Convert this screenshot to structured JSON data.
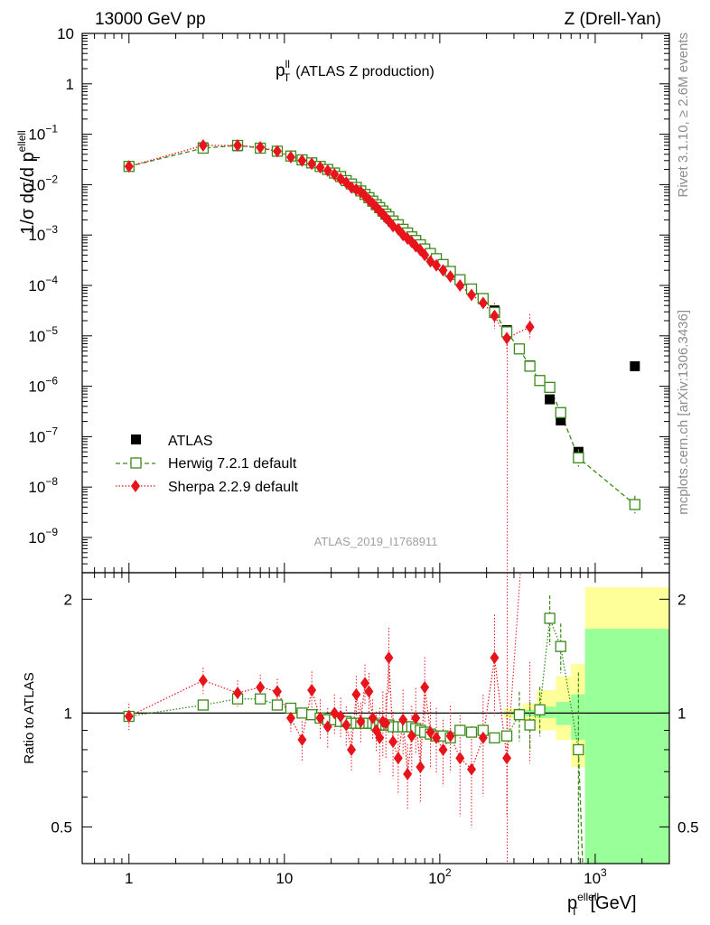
{
  "header": {
    "left": "13000 GeV pp",
    "right": "Z (Drell-Yan)"
  },
  "side_text": {
    "rivet": "Rivet 3.1.10, ≥ 2.6M events",
    "mcplots": "mcplots.cern.ch [arXiv:1306.3436]"
  },
  "chart_data": [
    {
      "type": "scatter",
      "panel": "main",
      "title": "(ATLAS Z production)",
      "title_main": "p",
      "title_sup": "ll",
      "title_sub": "T",
      "analysis_tag": "ATLAS_2019_I1768911",
      "ylabel": "1/σ dσ/d p",
      "ylabel_sup": "ellell",
      "ylabel_sub": "T",
      "x_scale": "log",
      "y_scale": "log",
      "xlim": [
        0.5,
        3000
      ],
      "ylim": [
        2e-10,
        10
      ],
      "y_ticks": [
        {
          "v": 1e-09,
          "b": "10",
          "e": "−9"
        },
        {
          "v": 1e-08,
          "b": "10",
          "e": "−8"
        },
        {
          "v": 1e-07,
          "b": "10",
          "e": "−7"
        },
        {
          "v": 1e-06,
          "b": "10",
          "e": "−6"
        },
        {
          "v": 1e-05,
          "b": "10",
          "e": "−5"
        },
        {
          "v": 0.0001,
          "b": "10",
          "e": "−4"
        },
        {
          "v": 0.001,
          "b": "10",
          "e": "−3"
        },
        {
          "v": 0.01,
          "b": "10",
          "e": "−2"
        },
        {
          "v": 0.1,
          "b": "10",
          "e": "−1"
        },
        {
          "v": 1,
          "b": "1",
          "e": ""
        },
        {
          "v": 10,
          "b": "10",
          "e": ""
        }
      ],
      "legend": [
        "ATLAS",
        "Herwig 7.2.1 default",
        "Sherpa 2.2.9 default"
      ],
      "legend_position": "bottom-left",
      "series": [
        {
          "name": "ATLAS",
          "color": "#000000",
          "marker": "filled-square",
          "points": [
            [
              1,
              0.023
            ],
            [
              3,
              0.055
            ],
            [
              5,
              0.058
            ],
            [
              7,
              0.052
            ],
            [
              9,
              0.045
            ],
            [
              11,
              0.037
            ],
            [
              13,
              0.031
            ],
            [
              15,
              0.027
            ],
            [
              17,
              0.023
            ],
            [
              19,
              0.02
            ],
            [
              21,
              0.017
            ],
            [
              23,
              0.0145
            ],
            [
              25,
              0.012
            ],
            [
              27,
              0.0103
            ],
            [
              29,
              0.0088
            ],
            [
              31,
              0.0075
            ],
            [
              33,
              0.0064
            ],
            [
              35,
              0.0055
            ],
            [
              37,
              0.0047
            ],
            [
              39,
              0.004
            ],
            [
              41,
              0.0035
            ],
            [
              43,
              0.003
            ],
            [
              45,
              0.0026
            ],
            [
              47,
              0.0023
            ],
            [
              50,
              0.0019
            ],
            [
              54,
              0.0016
            ],
            [
              58,
              0.0013
            ],
            [
              62,
              0.0011
            ],
            [
              66,
              0.00092
            ],
            [
              70,
              0.00078
            ],
            [
              75,
              0.00064
            ],
            [
              80,
              0.00053
            ],
            [
              87,
              0.00043
            ],
            [
              95,
              0.00034
            ],
            [
              105,
              0.00026
            ],
            [
              117,
              0.00019
            ],
            [
              135,
              0.00013
            ],
            [
              160,
              8.5e-05
            ],
            [
              190,
              5.5e-05
            ],
            [
              225,
              3.2e-05
            ],
            [
              270,
              1.3e-05
            ],
            [
              325,
              5.5e-06
            ],
            [
              380,
              2.6e-06
            ],
            [
              440,
              1.3e-06
            ],
            [
              510,
              5.5e-07
            ],
            [
              600,
              2.1e-07
            ],
            [
              780,
              5e-08
            ],
            [
              1800,
              2.5e-06
            ]
          ]
        },
        {
          "name": "Herwig 7.2.1 default",
          "color": "#3a8a1a",
          "marker": "open-square",
          "line": "dashed",
          "points": [
            [
              1,
              0.023
            ],
            [
              3,
              0.053
            ],
            [
              5,
              0.06
            ],
            [
              7,
              0.053
            ],
            [
              9,
              0.046
            ],
            [
              11,
              0.037
            ],
            [
              13,
              0.031
            ],
            [
              15,
              0.027
            ],
            [
              17,
              0.023
            ],
            [
              19,
              0.02
            ],
            [
              21,
              0.017
            ],
            [
              23,
              0.0145
            ],
            [
              25,
              0.012
            ],
            [
              27,
              0.0103
            ],
            [
              29,
              0.0088
            ],
            [
              31,
              0.0075
            ],
            [
              33,
              0.0064
            ],
            [
              35,
              0.0055
            ],
            [
              37,
              0.0047
            ],
            [
              39,
              0.004
            ],
            [
              41,
              0.0035
            ],
            [
              43,
              0.003
            ],
            [
              45,
              0.0026
            ],
            [
              47,
              0.0023
            ],
            [
              50,
              0.0019
            ],
            [
              54,
              0.0016
            ],
            [
              58,
              0.0013
            ],
            [
              62,
              0.0011
            ],
            [
              66,
              0.00092
            ],
            [
              70,
              0.00078
            ],
            [
              75,
              0.00064
            ],
            [
              80,
              0.00053
            ],
            [
              87,
              0.00043
            ],
            [
              95,
              0.00034
            ],
            [
              105,
              0.00026
            ],
            [
              117,
              0.00019
            ],
            [
              135,
              0.00013
            ],
            [
              160,
              8.5e-05
            ],
            [
              190,
              5.5e-05
            ],
            [
              225,
              2.9e-05
            ],
            [
              270,
              1.2e-05
            ],
            [
              325,
              5.5e-06
            ],
            [
              380,
              2.5e-06
            ],
            [
              440,
              1.3e-06
            ],
            [
              510,
              9.5e-07
            ],
            [
              600,
              3e-07
            ],
            [
              780,
              3.8e-08
            ],
            [
              1800,
              4.5e-09
            ]
          ]
        },
        {
          "name": "Sherpa 2.2.9 default",
          "color": "#e8141c",
          "marker": "filled-diamond",
          "line": "dotted",
          "points": [
            [
              1,
              0.023
            ],
            [
              3,
              0.06
            ],
            [
              5,
              0.06
            ],
            [
              7,
              0.055
            ],
            [
              9,
              0.046
            ],
            [
              11,
              0.035
            ],
            [
              13,
              0.03
            ],
            [
              15,
              0.026
            ],
            [
              17,
              0.022
            ],
            [
              19,
              0.019
            ],
            [
              21,
              0.016
            ],
            [
              23,
              0.013
            ],
            [
              25,
              0.011
            ],
            [
              27,
              0.0088
            ],
            [
              29,
              0.008
            ],
            [
              31,
              0.0072
            ],
            [
              33,
              0.006
            ],
            [
              35,
              0.005
            ],
            [
              37,
              0.0042
            ],
            [
              39,
              0.0036
            ],
            [
              41,
              0.003
            ],
            [
              43,
              0.0026
            ],
            [
              45,
              0.0022
            ],
            [
              47,
              0.0019
            ],
            [
              50,
              0.0015
            ],
            [
              54,
              0.0013
            ],
            [
              58,
              0.001
            ],
            [
              62,
              0.00085
            ],
            [
              66,
              0.00073
            ],
            [
              70,
              0.0006
            ],
            [
              75,
              0.0005
            ],
            [
              80,
              0.0004
            ],
            [
              87,
              0.0003
            ],
            [
              95,
              0.00025
            ],
            [
              105,
              0.0002
            ],
            [
              117,
              0.00015
            ],
            [
              135,
              0.0001
            ],
            [
              160,
              6.5e-05
            ],
            [
              190,
              4.5e-05
            ],
            [
              225,
              2.5e-05
            ],
            [
              270,
              9e-06
            ],
            [
              380,
              1.5e-05
            ]
          ]
        }
      ]
    },
    {
      "type": "scatter",
      "panel": "ratio",
      "ylabel": "Ratio to ATLAS",
      "xlabel": "[GeV]",
      "xlabel_main": "p",
      "xlabel_sup": "ellell",
      "xlabel_sub": "T",
      "x_scale": "log",
      "y_scale": "log",
      "xlim": [
        0.5,
        3000
      ],
      "ylim": [
        0.4,
        2.35
      ],
      "y_ticks": [
        0.5,
        1,
        2
      ],
      "y_tick_labels": [
        "0.5",
        "1",
        "2"
      ],
      "x_ticks": [
        {
          "v": 1,
          "b": "1",
          "e": ""
        },
        {
          "v": 10,
          "b": "10",
          "e": ""
        },
        {
          "v": 100,
          "b": "10",
          "e": "2"
        },
        {
          "v": 1000,
          "b": "10",
          "e": "3"
        }
      ],
      "uncertainty_bands": [
        {
          "x0": 260,
          "x1": 340,
          "yellow": [
            0.97,
            1.03
          ],
          "green": [
            0.99,
            1.01
          ]
        },
        {
          "x0": 340,
          "x1": 420,
          "yellow": [
            0.95,
            1.06
          ],
          "green": [
            0.98,
            1.02
          ]
        },
        {
          "x0": 420,
          "x1": 560,
          "yellow": [
            0.9,
            1.15
          ],
          "green": [
            0.97,
            1.04
          ]
        },
        {
          "x0": 560,
          "x1": 700,
          "yellow": [
            0.85,
            1.25
          ],
          "green": [
            0.93,
            1.07
          ]
        },
        {
          "x0": 700,
          "x1": 860,
          "yellow": [
            0.72,
            1.35
          ],
          "green": [
            0.85,
            1.12
          ]
        },
        {
          "x0": 860,
          "x1": 3000,
          "yellow": [
            0.3,
            2.15
          ],
          "green": [
            0.3,
            1.67
          ]
        }
      ],
      "series": [
        {
          "name": "Herwig 7.2.1 default",
          "color": "#3a8a1a",
          "points": [
            [
              1,
              0.98
            ],
            [
              3,
              1.05
            ],
            [
              5,
              1.09
            ],
            [
              7,
              1.09
            ],
            [
              9,
              1.05
            ],
            [
              11,
              1.03
            ],
            [
              13,
              1.0
            ],
            [
              15,
              0.99
            ],
            [
              17,
              0.97
            ],
            [
              19,
              0.96
            ],
            [
              21,
              0.96
            ],
            [
              23,
              0.95
            ],
            [
              25,
              0.95
            ],
            [
              27,
              0.94
            ],
            [
              29,
              0.94
            ],
            [
              31,
              0.94
            ],
            [
              33,
              0.94
            ],
            [
              35,
              0.94
            ],
            [
              37,
              0.94
            ],
            [
              39,
              0.93
            ],
            [
              41,
              0.93
            ],
            [
              43,
              0.93
            ],
            [
              45,
              0.93
            ],
            [
              47,
              0.93
            ],
            [
              50,
              0.92
            ],
            [
              54,
              0.92
            ],
            [
              58,
              0.92
            ],
            [
              62,
              0.92
            ],
            [
              66,
              0.92
            ],
            [
              70,
              0.91
            ],
            [
              75,
              0.9
            ],
            [
              80,
              0.89
            ],
            [
              87,
              0.88
            ],
            [
              95,
              0.87
            ],
            [
              105,
              0.87
            ],
            [
              117,
              0.86
            ],
            [
              135,
              0.9
            ],
            [
              160,
              0.89
            ],
            [
              190,
              0.9
            ],
            [
              225,
              0.86
            ],
            [
              270,
              0.87
            ],
            [
              325,
              0.99
            ],
            [
              380,
              0.93
            ],
            [
              440,
              1.02
            ],
            [
              510,
              1.78
            ],
            [
              600,
              1.5
            ],
            [
              780,
              0.8
            ]
          ]
        },
        {
          "name": "Sherpa 2.2.9 default",
          "color": "#e8141c",
          "points": [
            [
              1,
              0.98
            ],
            [
              3,
              1.22
            ],
            [
              5,
              1.13
            ],
            [
              7,
              1.17
            ],
            [
              9,
              1.14
            ],
            [
              11,
              0.97
            ],
            [
              13,
              0.85
            ],
            [
              15,
              1.15
            ],
            [
              17,
              0.97
            ],
            [
              19,
              0.92
            ],
            [
              21,
              1.0
            ],
            [
              23,
              0.98
            ],
            [
              25,
              0.93
            ],
            [
              27,
              0.8
            ],
            [
              29,
              1.12
            ],
            [
              31,
              0.95
            ],
            [
              33,
              1.2
            ],
            [
              35,
              1.14
            ],
            [
              37,
              0.97
            ],
            [
              39,
              0.9
            ],
            [
              41,
              0.86
            ],
            [
              43,
              0.95
            ],
            [
              45,
              0.94
            ],
            [
              47,
              1.4
            ],
            [
              50,
              0.84
            ],
            [
              54,
              0.76
            ],
            [
              58,
              0.96
            ],
            [
              62,
              0.69
            ],
            [
              66,
              0.87
            ],
            [
              70,
              0.97
            ],
            [
              75,
              0.72
            ],
            [
              80,
              1.17
            ],
            [
              87,
              0.89
            ],
            [
              95,
              0.86
            ],
            [
              105,
              0.8
            ],
            [
              117,
              0.87
            ],
            [
              135,
              0.76
            ],
            [
              160,
              0.71
            ],
            [
              190,
              0.86
            ],
            [
              225,
              1.4
            ],
            [
              270,
              0.76
            ],
            [
              380,
              1.05
            ]
          ]
        }
      ]
    }
  ]
}
